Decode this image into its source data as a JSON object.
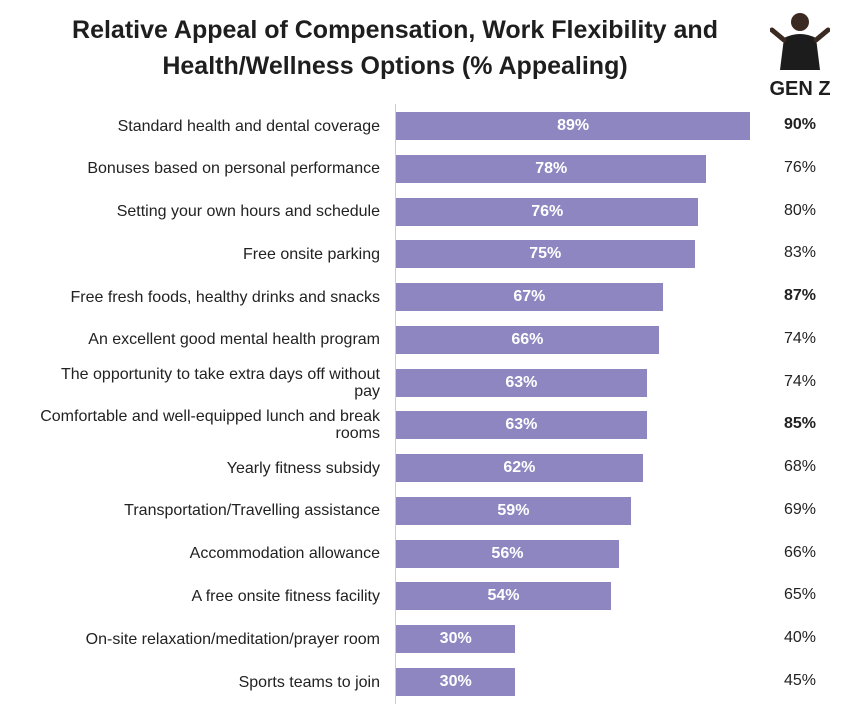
{
  "chart_data": {
    "type": "bar",
    "orientation": "horizontal",
    "title": "Relative Appeal of Compensation, Work Flexibility and Health/Wellness Options (% Appealing)",
    "categories": [
      "Standard health and dental coverage",
      "Bonuses based on personal performance",
      "Setting your own hours and schedule",
      "Free onsite parking",
      "Free fresh foods, healthy drinks and snacks",
      "An excellent good mental health program",
      "The opportunity to take extra days off without pay",
      "Comfortable and well-equipped lunch and break rooms",
      "Yearly fitness subsidy",
      "Transportation/Travelling assistance",
      "Accommodation allowance",
      "A free onsite fitness facility",
      "On-site relaxation/meditation/prayer room",
      "Sports teams to join"
    ],
    "values": [
      89,
      78,
      76,
      75,
      67,
      66,
      63,
      63,
      62,
      59,
      56,
      54,
      30,
      30
    ],
    "value_labels": [
      "89%",
      "78%",
      "76%",
      "75%",
      "67%",
      "66%",
      "63%",
      "63%",
      "62%",
      "59%",
      "56%",
      "54%",
      "30%",
      "30%"
    ],
    "color": "#8e86c1",
    "gen_z": {
      "name": "GEN Z",
      "values": [
        90,
        76,
        80,
        83,
        87,
        74,
        74,
        85,
        68,
        69,
        66,
        65,
        40,
        45
      ],
      "value_labels": [
        "90%",
        "76%",
        "80%",
        "83%",
        "87%",
        "74%",
        "74%",
        "85%",
        "68%",
        "69%",
        "66%",
        "65%",
        "40%",
        "45%"
      ],
      "bold": [
        true,
        false,
        false,
        false,
        true,
        false,
        false,
        true,
        false,
        false,
        false,
        false,
        false,
        false
      ]
    }
  }
}
